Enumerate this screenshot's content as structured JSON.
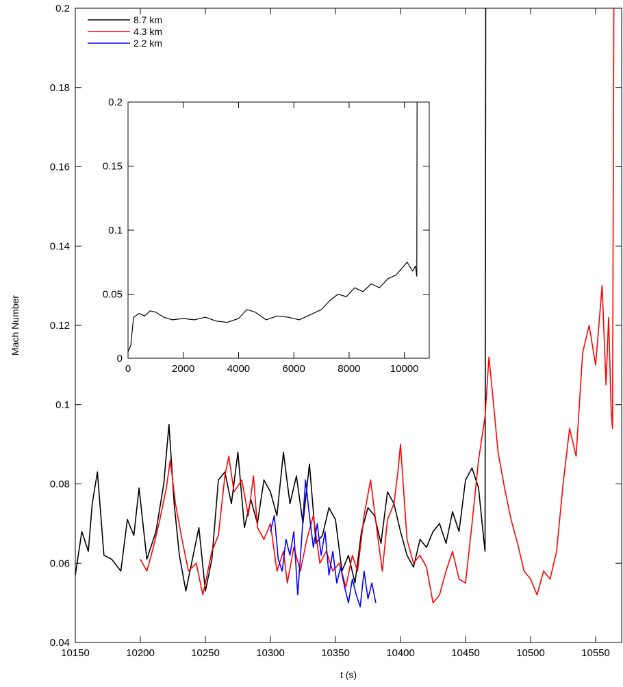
{
  "chart_data": [
    {
      "type": "line",
      "xlabel": "t (s)",
      "ylabel": "Mach Number",
      "xlim": [
        10150,
        10570
      ],
      "ylim": [
        0.04,
        0.2
      ],
      "x_ticks": [
        10150,
        10200,
        10250,
        10300,
        10350,
        10400,
        10450,
        10500,
        10550
      ],
      "y_ticks": [
        0.04,
        0.06,
        0.08,
        0.1,
        0.12,
        0.14,
        0.16,
        0.18,
        0.2
      ],
      "x_tick_labels": [
        "10150",
        "10200",
        "10250",
        "10300",
        "10350",
        "10400",
        "10450",
        "10500",
        "10550"
      ],
      "y_tick_labels": [
        "0.04",
        "0.06",
        "0.08",
        "0.1",
        "0.12",
        "0.14",
        "0.16",
        "0.18",
        "0.2"
      ],
      "grid": false,
      "legend_position": "top-left",
      "series": [
        {
          "name": "8.7 km",
          "color": "#000000",
          "x": [
            10150,
            10155,
            10160,
            10163,
            10167,
            10172,
            10178,
            10185,
            10190,
            10195,
            10199,
            10205,
            10212,
            10218,
            10222,
            10226,
            10230,
            10235,
            10240,
            10245,
            10250,
            10255,
            10260,
            10265,
            10270,
            10275,
            10280,
            10285,
            10290,
            10295,
            10300,
            10305,
            10310,
            10315,
            10320,
            10325,
            10330,
            10335,
            10340,
            10345,
            10350,
            10355,
            10360,
            10365,
            10370,
            10375,
            10380,
            10385,
            10390,
            10395,
            10400,
            10405,
            10410,
            10415,
            10420,
            10425,
            10430,
            10435,
            10440,
            10445,
            10450,
            10455,
            10460,
            10464,
            10465,
            10465.5
          ],
          "y": [
            0.057,
            0.068,
            0.063,
            0.075,
            0.083,
            0.062,
            0.061,
            0.058,
            0.071,
            0.067,
            0.079,
            0.061,
            0.068,
            0.08,
            0.095,
            0.075,
            0.062,
            0.053,
            0.061,
            0.069,
            0.053,
            0.061,
            0.081,
            0.083,
            0.075,
            0.088,
            0.069,
            0.076,
            0.07,
            0.081,
            0.078,
            0.072,
            0.088,
            0.075,
            0.082,
            0.07,
            0.085,
            0.065,
            0.067,
            0.074,
            0.071,
            0.058,
            0.062,
            0.055,
            0.068,
            0.074,
            0.072,
            0.065,
            0.078,
            0.075,
            0.068,
            0.062,
            0.059,
            0.066,
            0.064,
            0.068,
            0.07,
            0.065,
            0.073,
            0.068,
            0.081,
            0.084,
            0.079,
            0.066,
            0.063,
            0.2
          ]
        },
        {
          "name": "4.3 km",
          "color": "#ff0000",
          "x": [
            10200,
            10205,
            10210,
            10215,
            10220,
            10223,
            10227,
            10232,
            10237,
            10243,
            10248,
            10250,
            10255,
            10260,
            10265,
            10268,
            10272,
            10278,
            10283,
            10287,
            10290,
            10295,
            10300,
            10305,
            10310,
            10313,
            10318,
            10323,
            10328,
            10333,
            10338,
            10343,
            10348,
            10353,
            10358,
            10363,
            10367,
            10372,
            10377,
            10382,
            10386,
            10390,
            10395,
            10398,
            10400,
            10405,
            10410,
            10415,
            10420,
            10425,
            10430,
            10435,
            10440,
            10445,
            10450,
            10455,
            10460,
            10465,
            10468,
            10471,
            10475,
            10480,
            10485,
            10490,
            10495,
            10500,
            10505,
            10510,
            10515,
            10520,
            10525,
            10530,
            10535,
            10540,
            10545,
            10550,
            10555,
            10558,
            10560,
            10562,
            10563,
            10564
          ],
          "y": [
            0.061,
            0.058,
            0.064,
            0.071,
            0.079,
            0.086,
            0.075,
            0.066,
            0.058,
            0.06,
            0.052,
            0.055,
            0.063,
            0.067,
            0.082,
            0.087,
            0.078,
            0.081,
            0.072,
            0.082,
            0.069,
            0.066,
            0.07,
            0.058,
            0.063,
            0.055,
            0.064,
            0.058,
            0.066,
            0.072,
            0.06,
            0.063,
            0.058,
            0.06,
            0.054,
            0.062,
            0.058,
            0.072,
            0.081,
            0.068,
            0.058,
            0.071,
            0.075,
            0.083,
            0.09,
            0.066,
            0.06,
            0.062,
            0.059,
            0.05,
            0.052,
            0.058,
            0.063,
            0.056,
            0.055,
            0.07,
            0.086,
            0.097,
            0.112,
            0.102,
            0.088,
            0.079,
            0.071,
            0.065,
            0.058,
            0.056,
            0.052,
            0.058,
            0.056,
            0.063,
            0.08,
            0.094,
            0.087,
            0.113,
            0.12,
            0.11,
            0.13,
            0.105,
            0.122,
            0.098,
            0.094,
            0.2
          ]
        },
        {
          "name": "2.2 km",
          "color": "#0000ff",
          "x": [
            10300,
            10303,
            10306,
            10309,
            10312,
            10315,
            10318,
            10321,
            10324,
            10327,
            10330,
            10333,
            10336,
            10339,
            10342,
            10345,
            10348,
            10351,
            10354,
            10357,
            10360,
            10363,
            10366,
            10369,
            10372,
            10375,
            10378,
            10381
          ],
          "y": [
            0.068,
            0.072,
            0.061,
            0.058,
            0.066,
            0.062,
            0.068,
            0.052,
            0.066,
            0.081,
            0.072,
            0.064,
            0.07,
            0.062,
            0.068,
            0.057,
            0.063,
            0.055,
            0.059,
            0.054,
            0.05,
            0.056,
            0.052,
            0.049,
            0.058,
            0.051,
            0.055,
            0.05
          ]
        }
      ]
    },
    {
      "type": "line",
      "xlabel": "",
      "ylabel": "",
      "xlim": [
        0,
        10900
      ],
      "ylim": [
        0,
        0.2
      ],
      "x_ticks": [
        0,
        2000,
        4000,
        6000,
        8000,
        10000
      ],
      "y_ticks": [
        0,
        0.05,
        0.1,
        0.15,
        0.2
      ],
      "x_tick_labels": [
        "0",
        "2000",
        "4000",
        "6000",
        "8000",
        "10000"
      ],
      "y_tick_labels": [
        "0",
        "0.05",
        "0.1",
        "0.15",
        "0.2"
      ],
      "grid": false,
      "series": [
        {
          "color": "#000000",
          "x": [
            0,
            100,
            200,
            400,
            600,
            800,
            1000,
            1300,
            1600,
            2000,
            2400,
            2800,
            3200,
            3600,
            4000,
            4300,
            4600,
            5000,
            5400,
            5800,
            6200,
            6600,
            7000,
            7300,
            7600,
            7900,
            8200,
            8500,
            8800,
            9100,
            9400,
            9700,
            9900,
            10100,
            10300,
            10400,
            10450,
            10460
          ],
          "y": [
            0.005,
            0.01,
            0.032,
            0.035,
            0.033,
            0.037,
            0.036,
            0.032,
            0.03,
            0.031,
            0.03,
            0.032,
            0.029,
            0.028,
            0.031,
            0.038,
            0.036,
            0.03,
            0.033,
            0.032,
            0.03,
            0.034,
            0.038,
            0.045,
            0.05,
            0.048,
            0.055,
            0.052,
            0.058,
            0.055,
            0.062,
            0.065,
            0.07,
            0.075,
            0.068,
            0.072,
            0.064,
            0.2
          ]
        }
      ]
    }
  ]
}
